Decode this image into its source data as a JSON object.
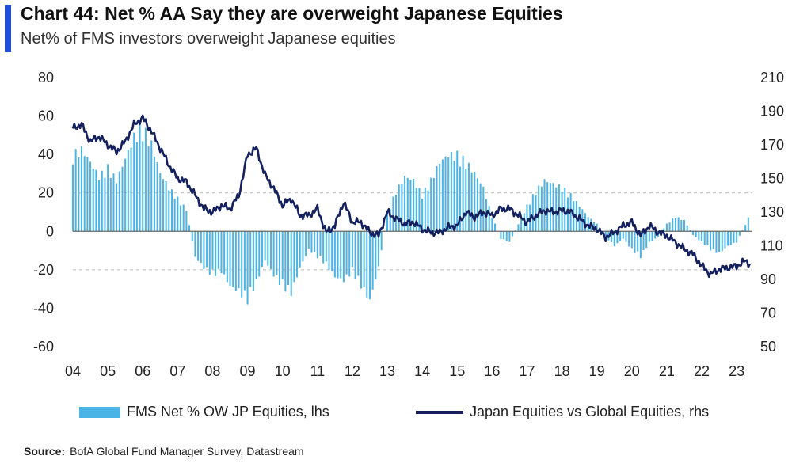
{
  "header": {
    "title": "Chart 44: Net % AA Say they are overweight Japanese Equities",
    "subtitle": "Net% of FMS investors overweight Japanese equities"
  },
  "legend": {
    "bar_label": "FMS Net % OW JP Equities, lhs",
    "line_label": "Japan Equities vs Global Equities, rhs"
  },
  "source": {
    "label": "Source:",
    "text": "BofA Global Fund Manager Survey, Datastream"
  },
  "colors": {
    "bars": "#4bb4e6",
    "line": "#14215e",
    "accent": "#1f4fd6",
    "grid": "#b9b9b9",
    "zero": "#666666"
  },
  "chart_data": {
    "type": "bar+line",
    "title": "Chart 44: Net % AA Say they are overweight Japanese Equities",
    "subtitle": "Net% of FMS investors overweight Japanese equities",
    "x_ticks": [
      "04",
      "05",
      "06",
      "07",
      "08",
      "09",
      "10",
      "11",
      "12",
      "13",
      "14",
      "15",
      "16",
      "17",
      "18",
      "19",
      "20",
      "21",
      "22",
      "23"
    ],
    "x_range": [
      2004.0,
      2023.45
    ],
    "y_left": {
      "range": [
        -60,
        80
      ],
      "ticks": [
        -60,
        -40,
        -20,
        0,
        20,
        40,
        60,
        80
      ]
    },
    "y_right": {
      "range": [
        50,
        210
      ],
      "ticks": [
        50,
        70,
        90,
        110,
        130,
        150,
        170,
        190,
        210
      ]
    },
    "grid": "dashed lines at left 20 and -20",
    "legend_position": "bottom",
    "series": [
      {
        "name": "FMS Net % OW JP Equities, lhs",
        "type": "bar",
        "axis": "left",
        "points": [
          [
            2004.0,
            42
          ],
          [
            2004.25,
            45
          ],
          [
            2004.5,
            38
          ],
          [
            2004.75,
            30
          ],
          [
            2005.0,
            35
          ],
          [
            2005.25,
            28
          ],
          [
            2005.5,
            40
          ],
          [
            2005.75,
            52
          ],
          [
            2006.0,
            57
          ],
          [
            2006.25,
            48
          ],
          [
            2006.5,
            32
          ],
          [
            2006.75,
            24
          ],
          [
            2007.0,
            18
          ],
          [
            2007.25,
            12
          ],
          [
            2007.5,
            -14
          ],
          [
            2007.75,
            -20
          ],
          [
            2008.0,
            -24
          ],
          [
            2008.25,
            -22
          ],
          [
            2008.5,
            -30
          ],
          [
            2008.75,
            -33
          ],
          [
            2009.0,
            -38
          ],
          [
            2009.25,
            -28
          ],
          [
            2009.5,
            -16
          ],
          [
            2009.75,
            -24
          ],
          [
            2010.0,
            -30
          ],
          [
            2010.25,
            -34
          ],
          [
            2010.5,
            -20
          ],
          [
            2010.75,
            -10
          ],
          [
            2011.0,
            -14
          ],
          [
            2011.25,
            -18
          ],
          [
            2011.5,
            -25
          ],
          [
            2011.75,
            -27
          ],
          [
            2012.0,
            -22
          ],
          [
            2012.25,
            -30
          ],
          [
            2012.5,
            -38
          ],
          [
            2012.75,
            -20
          ],
          [
            2013.0,
            10
          ],
          [
            2013.25,
            22
          ],
          [
            2013.5,
            30
          ],
          [
            2013.75,
            28
          ],
          [
            2014.0,
            20
          ],
          [
            2014.25,
            28
          ],
          [
            2014.5,
            38
          ],
          [
            2014.75,
            42
          ],
          [
            2015.0,
            42
          ],
          [
            2015.25,
            38
          ],
          [
            2015.5,
            32
          ],
          [
            2015.75,
            24
          ],
          [
            2016.0,
            8
          ],
          [
            2016.25,
            -4
          ],
          [
            2016.5,
            -6
          ],
          [
            2016.75,
            4
          ],
          [
            2017.0,
            14
          ],
          [
            2017.25,
            22
          ],
          [
            2017.5,
            28
          ],
          [
            2017.75,
            26
          ],
          [
            2018.0,
            24
          ],
          [
            2018.25,
            20
          ],
          [
            2018.5,
            14
          ],
          [
            2018.75,
            8
          ],
          [
            2019.0,
            4
          ],
          [
            2019.25,
            -3
          ],
          [
            2019.5,
            -8
          ],
          [
            2019.75,
            -4
          ],
          [
            2020.0,
            -10
          ],
          [
            2020.25,
            -14
          ],
          [
            2020.5,
            -6
          ],
          [
            2020.75,
            -3
          ],
          [
            2021.0,
            4
          ],
          [
            2021.25,
            8
          ],
          [
            2021.5,
            6
          ],
          [
            2021.75,
            -2
          ],
          [
            2022.0,
            -6
          ],
          [
            2022.25,
            -10
          ],
          [
            2022.5,
            -12
          ],
          [
            2022.75,
            -8
          ],
          [
            2023.0,
            -6
          ],
          [
            2023.25,
            4
          ],
          [
            2023.4,
            10
          ]
        ]
      },
      {
        "name": "Japan Equities vs Global Equities, rhs",
        "type": "line",
        "axis": "right",
        "points": [
          [
            2004.0,
            180
          ],
          [
            2004.25,
            182
          ],
          [
            2004.5,
            172
          ],
          [
            2004.75,
            175
          ],
          [
            2005.0,
            170
          ],
          [
            2005.25,
            166
          ],
          [
            2005.5,
            172
          ],
          [
            2005.75,
            182
          ],
          [
            2006.0,
            186
          ],
          [
            2006.25,
            178
          ],
          [
            2006.5,
            168
          ],
          [
            2006.75,
            158
          ],
          [
            2007.0,
            150
          ],
          [
            2007.25,
            148
          ],
          [
            2007.5,
            140
          ],
          [
            2007.75,
            132
          ],
          [
            2008.0,
            130
          ],
          [
            2008.25,
            134
          ],
          [
            2008.5,
            132
          ],
          [
            2008.75,
            140
          ],
          [
            2009.0,
            164
          ],
          [
            2009.25,
            168
          ],
          [
            2009.5,
            152
          ],
          [
            2009.75,
            144
          ],
          [
            2010.0,
            134
          ],
          [
            2010.25,
            138
          ],
          [
            2010.5,
            128
          ],
          [
            2010.75,
            128
          ],
          [
            2011.0,
            132
          ],
          [
            2011.25,
            118
          ],
          [
            2011.5,
            122
          ],
          [
            2011.75,
            136
          ],
          [
            2012.0,
            124
          ],
          [
            2012.25,
            124
          ],
          [
            2012.5,
            118
          ],
          [
            2012.75,
            116
          ],
          [
            2013.0,
            130
          ],
          [
            2013.25,
            126
          ],
          [
            2013.5,
            123
          ],
          [
            2013.75,
            124
          ],
          [
            2014.0,
            120
          ],
          [
            2014.25,
            118
          ],
          [
            2014.5,
            118
          ],
          [
            2014.75,
            121
          ],
          [
            2015.0,
            122
          ],
          [
            2015.25,
            130
          ],
          [
            2015.5,
            127
          ],
          [
            2015.75,
            130
          ],
          [
            2016.0,
            128
          ],
          [
            2016.25,
            132
          ],
          [
            2016.5,
            132
          ],
          [
            2016.75,
            128
          ],
          [
            2017.0,
            124
          ],
          [
            2017.25,
            128
          ],
          [
            2017.5,
            131
          ],
          [
            2017.75,
            130
          ],
          [
            2018.0,
            131
          ],
          [
            2018.25,
            130
          ],
          [
            2018.5,
            126
          ],
          [
            2018.75,
            122
          ],
          [
            2019.0,
            120
          ],
          [
            2019.25,
            115
          ],
          [
            2019.5,
            118
          ],
          [
            2019.75,
            122
          ],
          [
            2020.0,
            124
          ],
          [
            2020.25,
            116
          ],
          [
            2020.5,
            122
          ],
          [
            2020.75,
            118
          ],
          [
            2021.0,
            116
          ],
          [
            2021.25,
            112
          ],
          [
            2021.5,
            108
          ],
          [
            2021.75,
            105
          ],
          [
            2022.0,
            98
          ],
          [
            2022.25,
            93
          ],
          [
            2022.5,
            96
          ],
          [
            2022.75,
            97
          ],
          [
            2023.0,
            98
          ],
          [
            2023.25,
            101
          ],
          [
            2023.4,
            99
          ]
        ]
      }
    ]
  }
}
